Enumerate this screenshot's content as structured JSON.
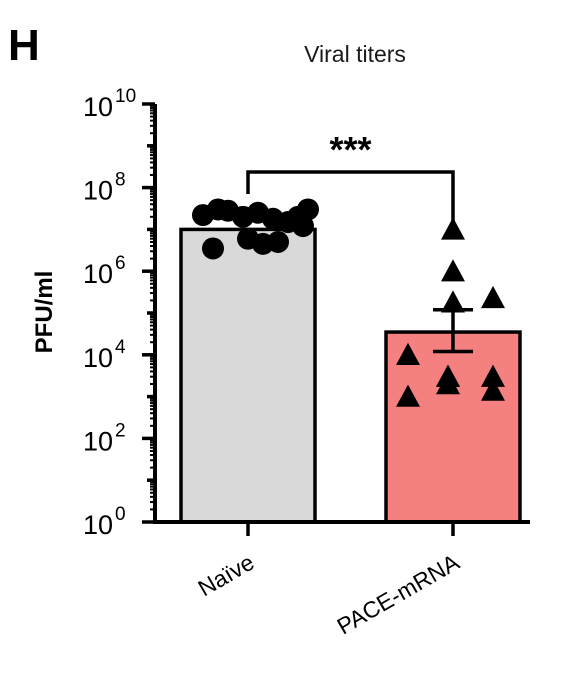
{
  "panel_label": "H",
  "chart_data": {
    "type": "bar",
    "title": "Viral titers",
    "ylabel": "PFU/ml",
    "xlabel": "",
    "yscale": "log10",
    "ylim": [
      1,
      10000000000
    ],
    "y_ticks": [
      {
        "base": "10",
        "exp": "0"
      },
      {
        "base": "10",
        "exp": "2"
      },
      {
        "base": "10",
        "exp": "4"
      },
      {
        "base": "10",
        "exp": "6"
      },
      {
        "base": "10",
        "exp": "8"
      },
      {
        "base": "10",
        "exp": "10"
      }
    ],
    "categories": [
      "Naïve",
      "PACE-mRNA"
    ],
    "bars": [
      {
        "category": "Naïve",
        "mean": 10000000,
        "color": "#d9d9d9",
        "marker": "circle",
        "points": [
          30000000,
          25000000,
          20000000,
          18000000,
          15000000,
          28000000,
          12000000,
          22000000,
          20000000,
          30000000,
          3500000,
          5000000,
          6000000,
          4500000
        ]
      },
      {
        "category": "PACE-mRNA",
        "mean": 35000,
        "color": "#f58080",
        "marker": "triangle",
        "error_bar": {
          "lower": 12000,
          "upper": 120000
        },
        "points": [
          10000000,
          1000000,
          180000,
          230000,
          10000,
          3000,
          1000,
          3000,
          3000,
          1400,
          2000
        ]
      }
    ],
    "significance": {
      "label": "***",
      "between": [
        "Naïve",
        "PACE-mRNA"
      ]
    },
    "grid": false,
    "legend": "none"
  }
}
